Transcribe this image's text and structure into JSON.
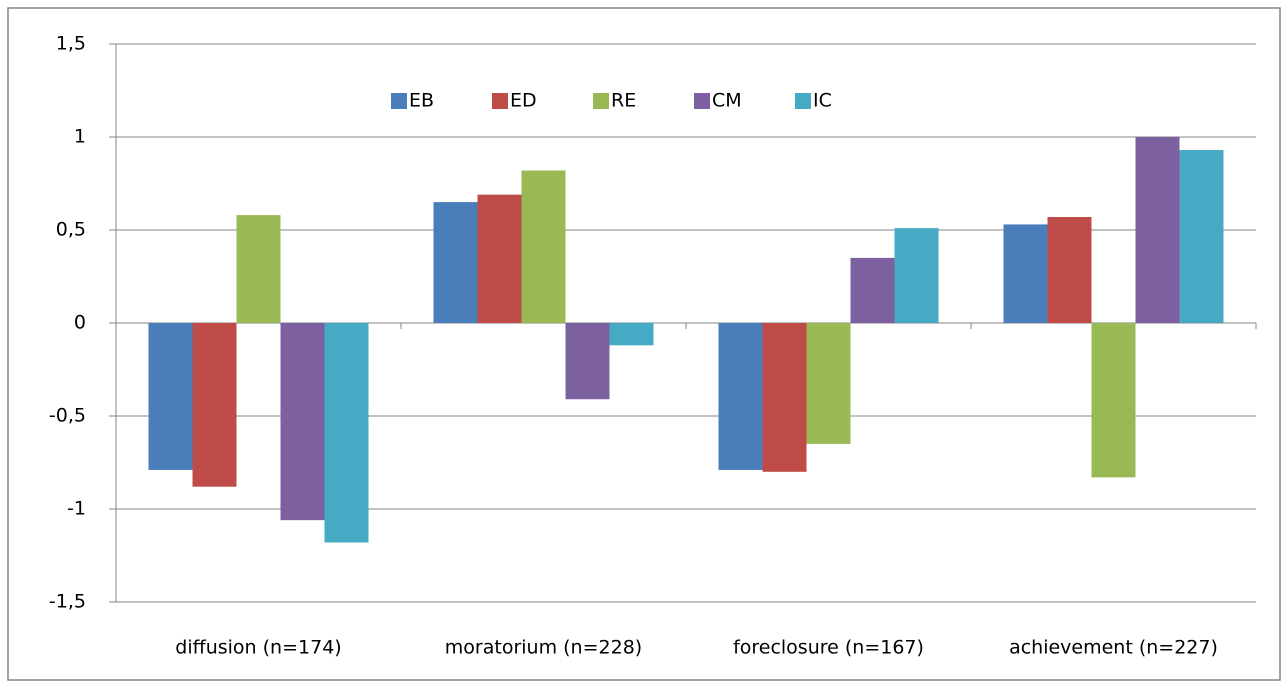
{
  "chart_data": {
    "type": "bar",
    "categories": [
      "diffusion (n=174)",
      "moratorium (n=228)",
      "foreclosure (n=167)",
      "achievement (n=227)"
    ],
    "series": [
      {
        "name": "EB",
        "color": "#4a7ebb",
        "values": [
          -0.79,
          0.65,
          -0.79,
          0.53
        ]
      },
      {
        "name": "ED",
        "color": "#be4b48",
        "values": [
          -0.88,
          0.69,
          -0.8,
          0.57
        ]
      },
      {
        "name": "RE",
        "color": "#98b954",
        "values": [
          0.58,
          0.82,
          -0.65,
          -0.83
        ]
      },
      {
        "name": "CM",
        "color": "#7d60a0",
        "values": [
          -1.06,
          -0.41,
          0.35,
          1.0
        ]
      },
      {
        "name": "IC",
        "color": "#46aac5",
        "values": [
          -1.18,
          -0.12,
          0.51,
          0.93
        ]
      }
    ],
    "ylim": [
      -1.5,
      1.5
    ],
    "yticks": [
      {
        "value": -1.5,
        "label": "-1,5"
      },
      -1,
      {
        "value": -0.5,
        "label": "-0,5"
      },
      0,
      {
        "value": 0.5,
        "label": "0,5"
      },
      1,
      {
        "value": 1.5,
        "label": "1,5"
      }
    ],
    "grid": true,
    "legend": "top"
  }
}
